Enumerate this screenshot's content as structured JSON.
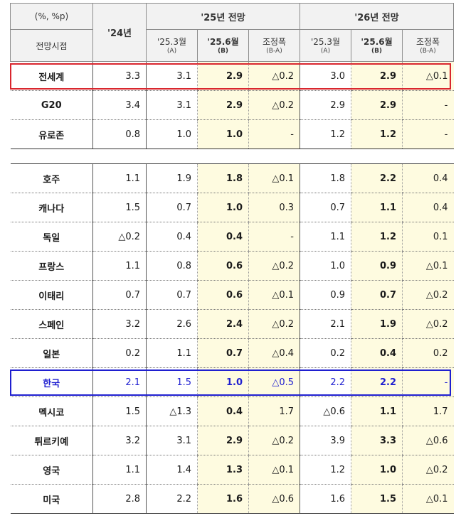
{
  "header": {
    "unit": "(%, %p)",
    "timepoint": "전망시점",
    "year24": "'24년",
    "proj25": "'25년 전망",
    "proj26": "'26년 전망",
    "mar25": "'25.3월",
    "mar25_sub": "(A)",
    "jun25": "'25.6월",
    "jun25_sub": "(B)",
    "adj": "조정폭",
    "adj_sub": "(B-A)"
  },
  "rows": [
    {
      "country": "전세계",
      "y24": "3.3",
      "a25": "3.1",
      "b25": "2.9",
      "d25": "△0.2",
      "a26": "3.0",
      "b26": "2.9",
      "d26": "△0.1"
    },
    {
      "country": "G20",
      "y24": "3.4",
      "a25": "3.1",
      "b25": "2.9",
      "d25": "△0.2",
      "a26": "2.9",
      "b26": "2.9",
      "d26": "-"
    },
    {
      "country": "유로존",
      "y24": "0.8",
      "a25": "1.0",
      "b25": "1.0",
      "d25": "-",
      "a26": "1.2",
      "b26": "1.2",
      "d26": "-"
    },
    {
      "country": "호주",
      "y24": "1.1",
      "a25": "1.9",
      "b25": "1.8",
      "d25": "△0.1",
      "a26": "1.8",
      "b26": "2.2",
      "d26": "0.4"
    },
    {
      "country": "캐나다",
      "y24": "1.5",
      "a25": "0.7",
      "b25": "1.0",
      "d25": "0.3",
      "a26": "0.7",
      "b26": "1.1",
      "d26": "0.4"
    },
    {
      "country": "독일",
      "y24": "△0.2",
      "a25": "0.4",
      "b25": "0.4",
      "d25": "-",
      "a26": "1.1",
      "b26": "1.2",
      "d26": "0.1"
    },
    {
      "country": "프랑스",
      "y24": "1.1",
      "a25": "0.8",
      "b25": "0.6",
      "d25": "△0.2",
      "a26": "1.0",
      "b26": "0.9",
      "d26": "△0.1"
    },
    {
      "country": "이태리",
      "y24": "0.7",
      "a25": "0.7",
      "b25": "0.6",
      "d25": "△0.1",
      "a26": "0.9",
      "b26": "0.7",
      "d26": "△0.2"
    },
    {
      "country": "스페인",
      "y24": "3.2",
      "a25": "2.6",
      "b25": "2.4",
      "d25": "△0.2",
      "a26": "2.1",
      "b26": "1.9",
      "d26": "△0.2"
    },
    {
      "country": "일본",
      "y24": "0.2",
      "a25": "1.1",
      "b25": "0.7",
      "d25": "△0.4",
      "a26": "0.2",
      "b26": "0.4",
      "d26": "0.2"
    },
    {
      "country": "한국",
      "y24": "2.1",
      "a25": "1.5",
      "b25": "1.0",
      "d25": "△0.5",
      "a26": "2.2",
      "b26": "2.2",
      "d26": "-"
    },
    {
      "country": "멕시코",
      "y24": "1.5",
      "a25": "△1.3",
      "b25": "0.4",
      "d25": "1.7",
      "a26": "△0.6",
      "b26": "1.1",
      "d26": "1.7"
    },
    {
      "country": "튀르키예",
      "y24": "3.2",
      "a25": "3.1",
      "b25": "2.9",
      "d25": "△0.2",
      "a26": "3.9",
      "b26": "3.3",
      "d26": "△0.6"
    },
    {
      "country": "영국",
      "y24": "1.1",
      "a25": "1.4",
      "b25": "1.3",
      "d25": "△0.1",
      "a26": "1.2",
      "b26": "1.0",
      "d26": "△0.2"
    },
    {
      "country": "미국",
      "y24": "2.8",
      "a25": "2.2",
      "b25": "1.6",
      "d25": "△0.6",
      "a26": "1.6",
      "b26": "1.5",
      "d26": "△0.1"
    }
  ],
  "highlights": {
    "red_row": "전세계",
    "blue_row": "한국",
    "red_color": "#d9262e",
    "blue_color": "#1f1fd0"
  }
}
